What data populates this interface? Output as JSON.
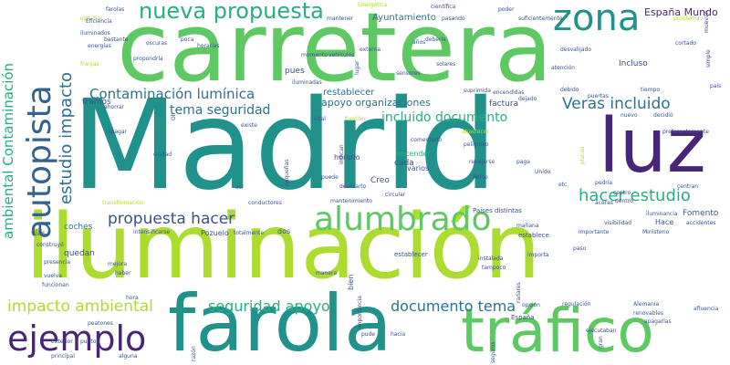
{
  "words": {
    "madrid": "Madrid",
    "carretera": "carretera",
    "iluminacion": "iluminación",
    "farola": "farola",
    "trafico": "tráfico",
    "luz": "luz",
    "zona": "zona",
    "autopista": "autopista",
    "alumbrado": "alumbrado",
    "ejemplo": "ejemplo",
    "nueva_propuesta": "nueva propuesta",
    "hacer_estudio": "hacer estudio",
    "estudio_impacto": "estudio impacto",
    "ambiental_contaminacion": "ambiental Contaminación",
    "contaminacion_luminica": "Contaminación lumínica",
    "propuesta_hacer": "propuesta hacer",
    "impacto_ambiental": "impacto ambiental",
    "seguridad_apoyo": "seguridad apoyo",
    "documento_tema": "documento tema",
    "veras_incluido": "Veras incluido",
    "incluido_documento": "incluido documento",
    "tema_seguridad": "tema seguridad",
    "apoyo_organizaciones": "apoyo organizaciones",
    "espana_mundo": "España Mundo",
    "ayuntamiento": "Ayuntamiento",
    "restablecer": "restablecer",
    "tramos": "tramos",
    "pues": "pues",
    "factura": "factura",
    "fomento": "Fomento",
    "creo": "Creo",
    "cada": "cada",
    "varios": "varios",
    "coches": "coches",
    "quedan": "quedan",
    "incluso": "Incluso",
    "vias": "vías",
    "pozuelo": "Pozuelo",
    "hace": "Hace",
    "horario": "horario",
    "encender": "encender",
    "bien": "bien",
    "dos": "dos",
    "farolas": "farolas",
    "cientifica": "científica",
    "estudiar": "estudiar",
    "poder": "poder",
    "mantener": "mantener",
    "energetica": "Energética",
    "iluminados": "iluminados",
    "bastante": "bastante",
    "energias": "energías",
    "eficiencia": "Eficiencia",
    "apagar": "apagar",
    "franjas": "franjas",
    "oscuras": "oscuras",
    "horarias": "horarias",
    "poca": "poca",
    "propondria": "propondría",
    "externa": "externa",
    "deberia": "debería",
    "anos": "años",
    "momento": "momento",
    "vehiculos": "vehículos",
    "iluminadas": "iluminadas",
    "lugar": "lugar",
    "sensores": "sensores",
    "solares": "solares",
    "suficientemente": "suficientemente",
    "pasando": "pasando",
    "desvalijado": "desvalijado",
    "atencion": "atención",
    "cortado": "cortado",
    "debido": "debido",
    "problema": "problema",
    "simple": "simple",
    "pais": "país",
    "puertas": "puertas",
    "tiempo": "tiempo",
    "suprimida": "suprimida",
    "encendidas": "encendidas",
    "dejado": "dejado",
    "nuevo": "nuevo",
    "decidio": "decidió",
    "preferentemente": "preferentemente",
    "ahorrar": "ahorrar",
    "existe": "existe",
    "vital": "vital",
    "funcion": "función",
    "abastecer": "abastecer",
    "comentario": "comentario",
    "peligroso": "peligroso",
    "indican": "indican",
    "rebajarse": "rebajarse",
    "reino": "Reino",
    "paga": "paga",
    "unido": "Unido",
    "ciudad": "ciudad",
    "asi": "así",
    "puede": "puede",
    "circular": "circular",
    "mantenimiento": "mantenimiento",
    "transformacion": "transformación",
    "conductores": "conductores",
    "intensificarse": "intensificarse",
    "construyo": "construyó",
    "totalmente": "totalmente",
    "dealizarlo": "dealizarlo",
    "paises_distintas": "Países distintas",
    "manana": "mañana",
    "establece": "establece",
    "importante": "importante",
    "visibilidad": "visibilidad",
    "ministerio": "Ministerio",
    "accidentes": "accidentes",
    "iluminancia": "iluminancia",
    "dentro": "dentro",
    "aceras": "aceras",
    "centro": "centro",
    "centran": "centran",
    "podria": "podría",
    "paso": "paso",
    "etc": "etc",
    "presencia": "presencia",
    "mejora": "mejora",
    "vuelva": "vuelva",
    "funcionan": "funcionan",
    "haber": "haber",
    "hora": "hora",
    "peatones": "peatones",
    "establecer": "establecer",
    "instalada": "instalada",
    "importa": "importa",
    "tampoco": "tampoco",
    "manera": "manera",
    "regulacion": "regulación",
    "alemania": "Alemania",
    "renovables": "renovables",
    "afluencia": "afluencia",
    "apagarlas": "apagarlas",
    "espana": "España",
    "opcion": "opción",
    "pude": "pude",
    "hacia": "hacía",
    "ejecutaban": "ejecutaban",
    "exterior": "Exterior",
    "puntos": "puntos",
    "principal": "principal",
    "alguna": "alguna",
    "razon": "razón",
    "importancia": "importancia",
    "seguros": "seguros",
    "gran": "gran",
    "radares": "radares",
    "muevan": "muevan",
    "pequenas": "pequeñas",
    "oh": "Oh",
    "placas": "placas"
  },
  "colors": {
    "background": "#ffffff",
    "dark_purple": "#440154",
    "indigo": "#482677",
    "blue": "#3b528b",
    "slate": "#33638d",
    "steel": "#2c728e",
    "teal": "#21918c",
    "green_teal": "#28ae80",
    "green": "#5ec962",
    "lime": "#addc30",
    "yellow": "#fde725"
  }
}
